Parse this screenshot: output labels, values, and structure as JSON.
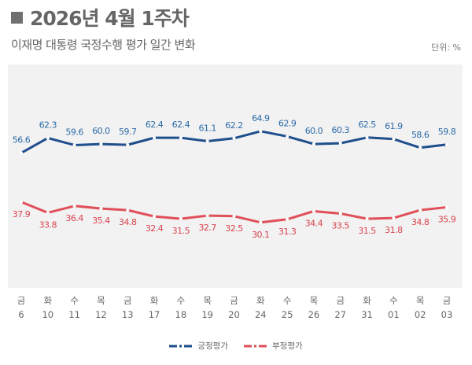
{
  "header": {
    "title": "2026년 4월 1주차",
    "subtitle": "이재명 대통령 국정수행 평가 일간 변화",
    "unit": "단위: %"
  },
  "chart_data": {
    "type": "line",
    "categories": [
      {
        "day": "금",
        "date": "6"
      },
      {
        "day": "화",
        "date": "10"
      },
      {
        "day": "수",
        "date": "11"
      },
      {
        "day": "목",
        "date": "12"
      },
      {
        "day": "금",
        "date": "13"
      },
      {
        "day": "화",
        "date": "17"
      },
      {
        "day": "수",
        "date": "18"
      },
      {
        "day": "목",
        "date": "19"
      },
      {
        "day": "금",
        "date": "20"
      },
      {
        "day": "화",
        "date": "24"
      },
      {
        "day": "수",
        "date": "25"
      },
      {
        "day": "목",
        "date": "26"
      },
      {
        "day": "금",
        "date": "27"
      },
      {
        "day": "화",
        "date": "31"
      },
      {
        "day": "수",
        "date": "01"
      },
      {
        "day": "목",
        "date": "02"
      },
      {
        "day": "금",
        "date": "03"
      }
    ],
    "series": [
      {
        "name": "긍정평가",
        "color": "#1f4e8c",
        "label_color": "#2a6aa8",
        "values": [
          56.6,
          62.3,
          59.6,
          60.0,
          59.7,
          62.4,
          62.4,
          61.1,
          62.2,
          64.9,
          62.9,
          60.0,
          60.3,
          62.5,
          61.9,
          58.6,
          59.8
        ]
      },
      {
        "name": "부정평가",
        "color": "#e0505a",
        "label_color": "#d9434e",
        "values": [
          37.9,
          33.8,
          36.4,
          35.4,
          34.8,
          32.4,
          31.5,
          32.7,
          32.5,
          30.1,
          31.3,
          34.4,
          33.5,
          31.5,
          31.8,
          34.8,
          35.9
        ]
      }
    ],
    "grid": false,
    "legend": "bottom",
    "background": "#f2f2f2"
  }
}
